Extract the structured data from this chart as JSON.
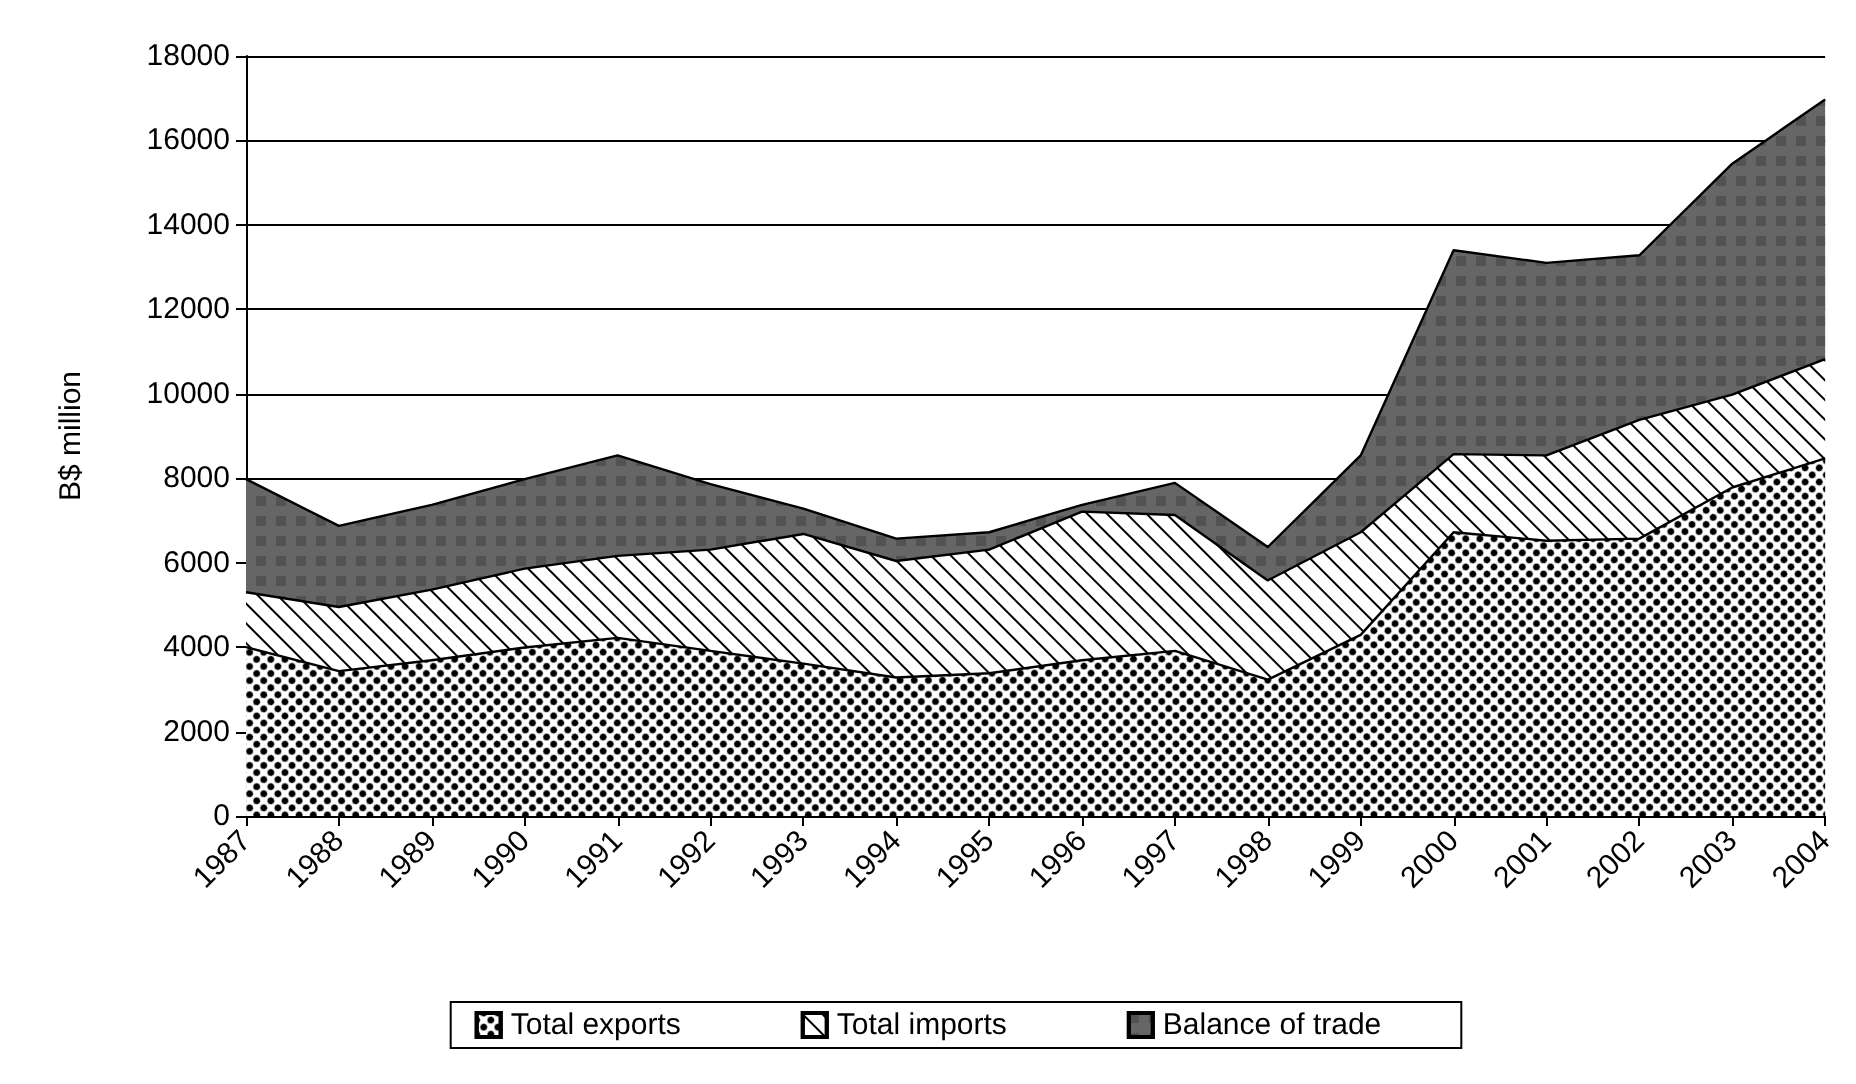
{
  "chart_data": {
    "type": "area",
    "stacked": true,
    "ylabel": "B$ million",
    "categories": [
      "1987",
      "1988",
      "1989",
      "1990",
      "1991",
      "1992",
      "1993",
      "1994",
      "1995",
      "1996",
      "1997",
      "1998",
      "1999",
      "2000",
      "2001",
      "2002",
      "2003",
      "2004"
    ],
    "series": [
      {
        "name": "Total exports",
        "color": "#000000",
        "values": [
          4000,
          3430,
          3690,
          3990,
          4220,
          3910,
          3610,
          3280,
          3380,
          3690,
          3910,
          3230,
          4290,
          6720,
          6520,
          6570,
          7780,
          8470
        ]
      },
      {
        "name": "Total imports",
        "color": "#000000",
        "values": [
          1300,
          1520,
          1670,
          1870,
          1940,
          2400,
          3070,
          2760,
          2930,
          3520,
          3220,
          2350,
          2430,
          1850,
          2020,
          2810,
          2200,
          2350
        ]
      },
      {
        "name": "Balance of trade",
        "color": "#666666",
        "values": [
          2680,
          1920,
          2010,
          2120,
          2380,
          1550,
          600,
          530,
          410,
          160,
          760,
          790,
          1820,
          4830,
          4560,
          3900,
          5470,
          6150
        ]
      }
    ],
    "ylim": [
      0,
      18000
    ],
    "yticks": [
      0,
      2000,
      4000,
      6000,
      8000,
      10000,
      12000,
      14000,
      16000,
      18000
    ],
    "grid": "y",
    "legend": "bottom"
  }
}
